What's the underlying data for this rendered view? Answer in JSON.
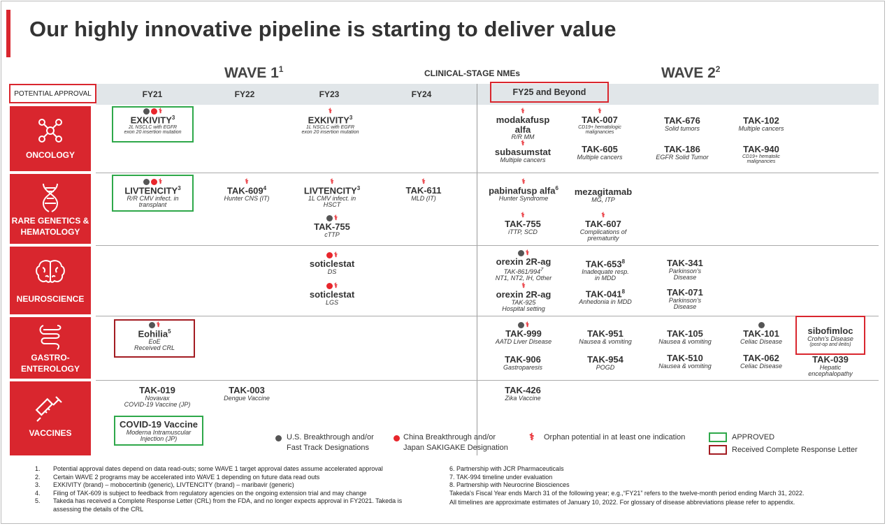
{
  "title": "Our highly innovative pipeline is starting to deliver value",
  "wave1": "WAVE 1",
  "wave1_sup": "1",
  "wave2": "WAVE 2",
  "wave2_sup": "2",
  "clinical": "CLINICAL-STAGE NMEs",
  "potential_approval": "POTENTIAL APPROVAL",
  "fy": [
    "FY21",
    "FY22",
    "FY23",
    "FY24",
    "FY25 and Beyond"
  ],
  "categories": [
    "ONCOLOGY",
    "RARE GENETICS & HEMATOLOGY",
    "NEUROSCIENCE",
    "GASTRO-ENTEROLOGY",
    "VACCINES"
  ],
  "oncology": {
    "exkivity1": {
      "name": "EXKIVITY",
      "sup": "3",
      "d1": "2L NSCLC with EGFR",
      "d2": "exon 20 insertion mutation"
    },
    "exkivity2": {
      "name": "EXKIVITY",
      "sup": "3",
      "d1": "1L NSCLC with EGFR",
      "d2": "exon 20 insertion mutation"
    },
    "modakafusp": {
      "n1": "modakafusp",
      "n2": "alfa",
      "d": "R/R MM"
    },
    "subasumstat": {
      "name": "subasumstat",
      "d": "Multiple cancers"
    },
    "tak007": {
      "name": "TAK-007",
      "d1": "CD19+ hematologic",
      "d2": "malignancies"
    },
    "tak605": {
      "name": "TAK-605",
      "d": "Multiple cancers"
    },
    "tak676": {
      "name": "TAK-676",
      "d": "Solid tumors"
    },
    "tak186": {
      "name": "TAK-186",
      "d": "EGFR Solid Tumor"
    },
    "tak102": {
      "name": "TAK-102",
      "d": "Multiple cancers"
    },
    "tak940": {
      "name": "TAK-940",
      "d1": "CD19+ hematolic",
      "d2": "malignancies"
    }
  },
  "rare": {
    "livtencity1": {
      "name": "LIVTENCITY",
      "sup": "3",
      "d1": "R/R CMV infect. in",
      "d2": "transplant"
    },
    "tak609": {
      "name": "TAK-609",
      "sup": "4",
      "d": "Hunter CNS (IT)"
    },
    "livtencity2": {
      "name": "LIVTENCITY",
      "sup": "3",
      "d1": "1L CMV infect. in",
      "d2": "HSCT"
    },
    "tak755a": {
      "name": "TAK-755",
      "d": "cTTP"
    },
    "tak611": {
      "name": "TAK-611",
      "d": "MLD (IT)"
    },
    "pabinafusp": {
      "name": "pabinafusp alfa",
      "sup": "6",
      "d": "Hunter Syndrome"
    },
    "tak755b": {
      "name": "TAK-755",
      "d": "iTTP, SCD"
    },
    "mezagitamab": {
      "name": "mezagitamab",
      "d": "MG, ITP"
    },
    "tak607": {
      "name": "TAK-607",
      "d1": "Complications of",
      "d2": "prematurity"
    }
  },
  "neuro": {
    "soticlestat1": {
      "name": "soticlestat",
      "d": "DS"
    },
    "soticlestat2": {
      "name": "soticlestat",
      "d": "LGS"
    },
    "orexin1": {
      "name": "orexin 2R-ag",
      "d1": "TAK-861/994",
      "sup": "7",
      "d2": "NT1, NT2, IH, Other"
    },
    "orexin2": {
      "name": "orexin 2R-ag",
      "d1": "TAK-925",
      "d2": "Hospital setting"
    },
    "tak653": {
      "name": "TAK-653",
      "sup": "8",
      "d1": "Inadequate resp.",
      "d2": "in MDD"
    },
    "tak041": {
      "name": "TAK-041",
      "sup": "8",
      "d": "Anhedonia in MDD"
    },
    "tak341": {
      "name": "TAK-341",
      "d1": "Parkinson's",
      "d2": "Disease"
    },
    "tak071": {
      "name": "TAK-071",
      "d1": "Parkinson's",
      "d2": "Disease"
    }
  },
  "gastro": {
    "eohilia": {
      "name": "Eohilia",
      "sup": "5",
      "d1": "EoE",
      "d2": "Received CRL"
    },
    "tak999": {
      "name": "TAK-999",
      "d": "AATD Liver Disease"
    },
    "tak906": {
      "name": "TAK-906",
      "d": "Gastroparesis"
    },
    "tak951": {
      "name": "TAK-951",
      "d": "Nausea & vomiting"
    },
    "tak954": {
      "name": "TAK-954",
      "d": "POGD"
    },
    "tak105": {
      "name": "TAK-105",
      "d": "Nausea & vomiting"
    },
    "tak510": {
      "name": "TAK-510",
      "d": "Nausea & vomiting"
    },
    "tak101": {
      "name": "TAK-101",
      "d": "Celiac Disease"
    },
    "tak062": {
      "name": "TAK-062",
      "d": "Celiac Disease"
    },
    "sibofimloc": {
      "name": "sibofimloc",
      "d1": "Crohn's Disease",
      "d2": "(post-op and ileitis)"
    },
    "tak039": {
      "name": "TAK-039",
      "d1": "Hepatic",
      "d2": "encephalopathy"
    }
  },
  "vaccines": {
    "tak019": {
      "name": "TAK-019",
      "d1": "Novavax",
      "d2": "COVID-19 Vaccine (JP)"
    },
    "covid": {
      "name": "COVID-19 Vaccine",
      "d1": "Moderna Intramuscular",
      "d2": "Injection (JP)"
    },
    "tak003": {
      "name": "TAK-003",
      "d": "Dengue Vaccine"
    },
    "tak426": {
      "name": "TAK-426",
      "d": "Zika Vaccine"
    }
  },
  "legend": {
    "us": [
      "U.S. Breakthrough and/or",
      "Fast Track Designations"
    ],
    "china": [
      "China Breakthrough and/or",
      "Japan SAKIGAKE Designation"
    ],
    "orphan": "Orphan potential in at least one indication",
    "approved": "APPROVED",
    "crl": "Received Complete Response Letter"
  },
  "footnotes_left": [
    {
      "n": "1.",
      "t": "Potential approval dates depend on data read-outs; some WAVE 1 target approval dates assume accelerated approval"
    },
    {
      "n": "2.",
      "t": "Certain WAVE 2 programs may be accelerated into WAVE 1 depending on future data read outs"
    },
    {
      "n": "3.",
      "t": "EXKIVITY (brand) – mobocertinib (generic), LIVTENCITY (brand) – maribavir (generic)"
    },
    {
      "n": "4.",
      "t": "Filing of TAK-609 is subject to feedback from regulatory agencies on the ongoing extension trial and may change"
    },
    {
      "n": "5.",
      "t": "Takeda has received a Complete Response Letter (CRL) from the FDA, and no longer expects approval in FY2021. Takeda is"
    },
    {
      "n": "",
      "t": "assessing the details of the CRL"
    }
  ],
  "footnotes_right": [
    "6. Partnership with JCR Pharmaceuticals",
    "7. TAK-994 timeline under evaluation",
    "8. Partnership with Neurocrine Biosciences",
    "Takeda's Fiscal Year ends March 31 of the following year; e.g.,“FY21” refers to the twelve-month period ending March 31, 2022.",
    "All timelines are approximate estimates of January 10, 2022. For glossary of disease abbreviations please refer to appendix."
  ],
  "colors": {
    "accent": "#d9262e",
    "approved": "#2ea84a",
    "crl": "#a31c22"
  }
}
